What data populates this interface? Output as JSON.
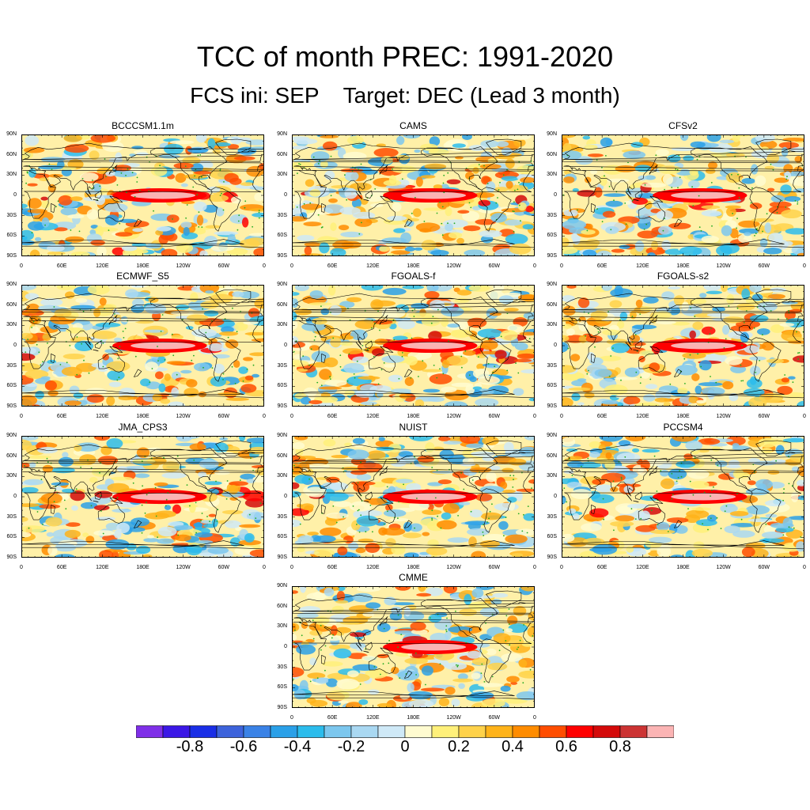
{
  "title": "TCC of month PREC: 1991-2020",
  "subtitle": "FCS ini: SEP    Target: DEC (Lead 3 month)",
  "chart_data": [
    {
      "type": "heatmap",
      "model": "BCCCSM1.1m",
      "title": "BCCCSM1.1m",
      "eq_max_tcc": 0.9,
      "lon_range": [
        0,
        360
      ],
      "lat_range": [
        -90,
        90
      ]
    },
    {
      "type": "heatmap",
      "model": "CAMS",
      "title": "CAMS",
      "eq_max_tcc": 0.9,
      "lon_range": [
        0,
        360
      ],
      "lat_range": [
        -90,
        90
      ]
    },
    {
      "type": "heatmap",
      "model": "CFSv2",
      "title": "CFSv2",
      "eq_max_tcc": 0.9,
      "lon_range": [
        0,
        360
      ],
      "lat_range": [
        -90,
        90
      ]
    },
    {
      "type": "heatmap",
      "model": "ECMWF_S5",
      "title": "ECMWF_S5",
      "eq_max_tcc": 0.9,
      "lon_range": [
        0,
        360
      ],
      "lat_range": [
        -90,
        90
      ]
    },
    {
      "type": "heatmap",
      "model": "FGOALS-f",
      "title": "FGOALS-f",
      "eq_max_tcc": 0.9,
      "lon_range": [
        0,
        360
      ],
      "lat_range": [
        -90,
        90
      ]
    },
    {
      "type": "heatmap",
      "model": "FGOALS-s2",
      "title": "FGOALS-s2",
      "eq_max_tcc": 0.9,
      "lon_range": [
        0,
        360
      ],
      "lat_range": [
        -90,
        90
      ]
    },
    {
      "type": "heatmap",
      "model": "JMA_CPS3",
      "title": "JMA_CPS3",
      "eq_max_tcc": 0.9,
      "lon_range": [
        0,
        360
      ],
      "lat_range": [
        -90,
        90
      ]
    },
    {
      "type": "heatmap",
      "model": "NUIST",
      "title": "NUIST",
      "eq_max_tcc": 0.9,
      "lon_range": [
        0,
        360
      ],
      "lat_range": [
        -90,
        90
      ]
    },
    {
      "type": "heatmap",
      "model": "PCCSM4",
      "title": "PCCSM4",
      "eq_max_tcc": 0.9,
      "lon_range": [
        0,
        360
      ],
      "lat_range": [
        -90,
        90
      ]
    },
    {
      "type": "heatmap",
      "model": "CMME",
      "title": "CMME",
      "eq_max_tcc": 0.9,
      "lon_range": [
        0,
        360
      ],
      "lat_range": [
        -90,
        90
      ]
    }
  ],
  "lat_ticks": [
    "90N",
    "60N",
    "30N",
    "0",
    "30S",
    "60S",
    "90S"
  ],
  "lon_ticks": [
    "0",
    "60E",
    "120E",
    "180E",
    "120W",
    "60W",
    "0"
  ],
  "colorbar": {
    "levels": [
      -0.9,
      -0.8,
      -0.7,
      -0.6,
      -0.5,
      -0.4,
      -0.3,
      -0.2,
      -0.1,
      0,
      0.1,
      0.2,
      0.3,
      0.4,
      0.5,
      0.6,
      0.7,
      0.8,
      0.9
    ],
    "colors": [
      "#7f2fe8",
      "#3b18e6",
      "#1a2ee6",
      "#3d63db",
      "#3a82e6",
      "#2aa0e8",
      "#2bbcec",
      "#7cc7ee",
      "#a9d8f2",
      "#cfe9f7",
      "#fffbd0",
      "#fff07a",
      "#ffd24a",
      "#ffb31a",
      "#ff8c00",
      "#ff4d00",
      "#ff0000",
      "#d40a0a",
      "#cc3333",
      "#fbb4b4"
    ],
    "labels": [
      "-0.8",
      "-0.6",
      "-0.4",
      "-0.2",
      "0",
      "0.2",
      "0.4",
      "0.6",
      "0.8"
    ],
    "label_values": [
      -0.8,
      -0.6,
      -0.4,
      -0.2,
      0,
      0.2,
      0.4,
      0.6,
      0.8
    ]
  }
}
